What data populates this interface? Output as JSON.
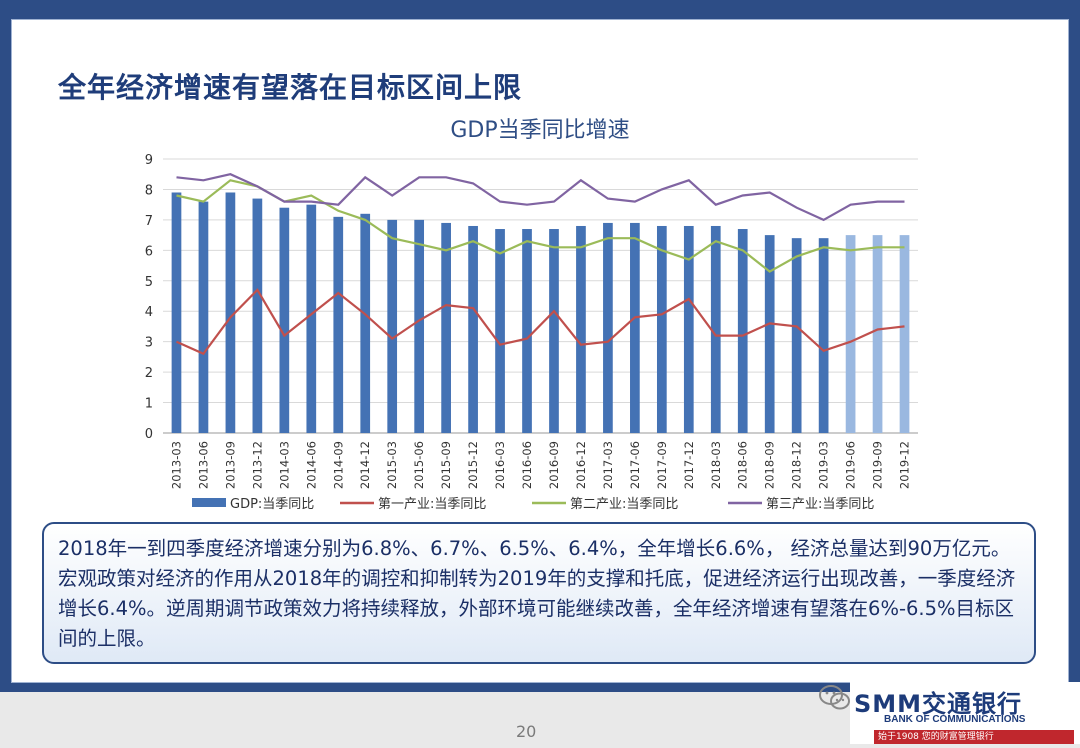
{
  "slide": {
    "title": "全年经济增速有望落在目标区间上限",
    "page_number": "20",
    "callout_text": "2018年一到四季度经济增速分别为6.8%、6.7%、6.5%、6.4%，全年增长6.6%， 经济总量达到90万亿元。宏观政策对经济的作用从2018年的调控和抑制转为2019年的支撑和托底，促进经济运行出现改善，一季度经济增长6.4%。逆周期调节政策效力将持续释放，外部环境可能继续改善，全年经济增速有望落在6%-6.5%目标区间的上限。"
  },
  "watermark": {
    "brand_name": "SMM交通银行",
    "brand_en": "BANK OF COMMUNICATIONS",
    "brand_slogan": "始于1908  您的财富管理银行",
    "icon": "wechat-icon"
  },
  "colors": {
    "frame": "#2d4d86",
    "bar": "#4472b4",
    "bar_forecast": "#9ab8e0",
    "primary": "#c0504d",
    "secondary": "#9bbb59",
    "tertiary": "#8064a2"
  },
  "chart_data": {
    "type": "bar",
    "title": "GDP当季同比增速",
    "categories": [
      "2013-03",
      "2013-06",
      "2013-09",
      "2013-12",
      "2014-03",
      "2014-06",
      "2014-09",
      "2014-12",
      "2015-03",
      "2015-06",
      "2015-09",
      "2015-12",
      "2016-03",
      "2016-06",
      "2016-09",
      "2016-12",
      "2017-03",
      "2017-06",
      "2017-09",
      "2017-12",
      "2018-03",
      "2018-06",
      "2018-09",
      "2018-12",
      "2019-03",
      "2019-06",
      "2019-09",
      "2019-12"
    ],
    "ylim": [
      0,
      9
    ],
    "yticks": [
      "0",
      "1",
      "2",
      "3",
      "4",
      "5",
      "6",
      "7",
      "8",
      "9"
    ],
    "grid": true,
    "legend_position": "bottom",
    "forecast_from_index": 25,
    "series": [
      {
        "name": "GDP:当季同比",
        "kind": "bar",
        "values": [
          7.9,
          7.6,
          7.9,
          7.7,
          7.4,
          7.5,
          7.1,
          7.2,
          7.0,
          7.0,
          6.9,
          6.8,
          6.7,
          6.7,
          6.7,
          6.8,
          6.9,
          6.9,
          6.8,
          6.8,
          6.8,
          6.7,
          6.5,
          6.4,
          6.4,
          6.5,
          6.5,
          6.5
        ]
      },
      {
        "name": "第一产业:当季同比",
        "kind": "line",
        "values": [
          3.0,
          2.6,
          3.8,
          4.7,
          3.2,
          3.9,
          4.6,
          3.9,
          3.1,
          3.7,
          4.2,
          4.1,
          2.9,
          3.1,
          4.0,
          2.9,
          3.0,
          3.8,
          3.9,
          4.4,
          3.2,
          3.2,
          3.6,
          3.5,
          2.7,
          3.0,
          3.4,
          3.5
        ]
      },
      {
        "name": "第二产业:当季同比",
        "kind": "line",
        "values": [
          7.8,
          7.6,
          8.3,
          8.1,
          7.6,
          7.8,
          7.3,
          7.0,
          6.4,
          6.2,
          6.0,
          6.3,
          5.9,
          6.3,
          6.1,
          6.1,
          6.4,
          6.4,
          6.0,
          5.7,
          6.3,
          6.0,
          5.3,
          5.8,
          6.1,
          6.0,
          6.1,
          6.1
        ]
      },
      {
        "name": "第三产业:当季同比",
        "kind": "line",
        "values": [
          8.4,
          8.3,
          8.5,
          8.1,
          7.6,
          7.6,
          7.5,
          8.4,
          7.8,
          8.4,
          8.4,
          8.2,
          7.6,
          7.5,
          7.6,
          8.3,
          7.7,
          7.6,
          8.0,
          8.3,
          7.5,
          7.8,
          7.9,
          7.4,
          7.0,
          7.5,
          7.6,
          7.6
        ]
      }
    ]
  }
}
